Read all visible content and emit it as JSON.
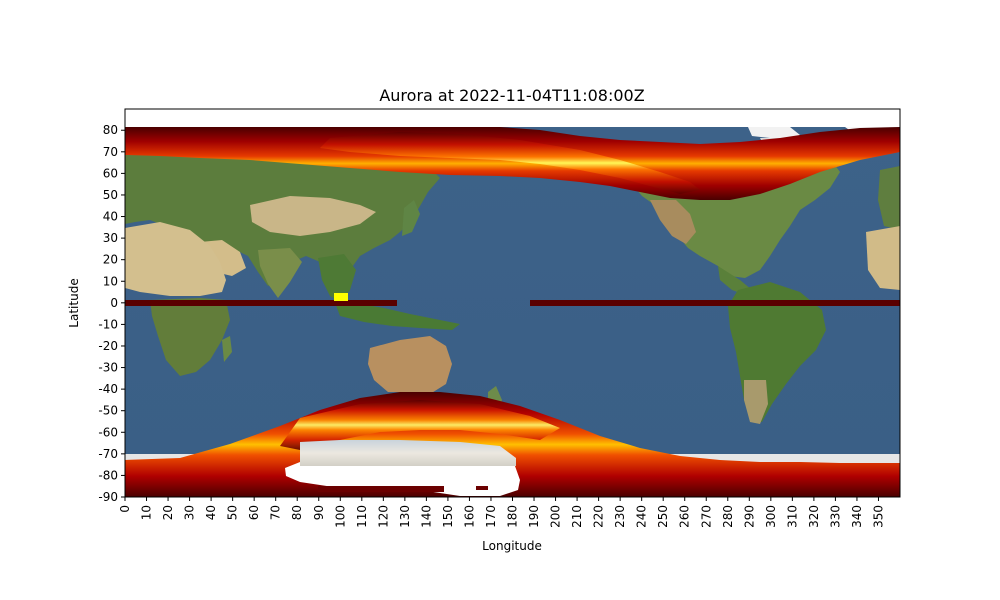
{
  "chart_data": {
    "type": "heatmap",
    "title": "Aurora at 2022-11-04T11:08:00Z",
    "xlabel": "Longitude",
    "ylabel": "Latitude",
    "xlim": [
      0,
      359
    ],
    "ylim": [
      -90,
      90
    ],
    "x_ticks": [
      0,
      10,
      20,
      30,
      40,
      50,
      60,
      70,
      80,
      90,
      100,
      110,
      120,
      130,
      140,
      150,
      160,
      170,
      180,
      190,
      200,
      210,
      220,
      230,
      240,
      250,
      260,
      270,
      280,
      290,
      300,
      310,
      320,
      330,
      340,
      350
    ],
    "y_ticks": [
      80,
      70,
      60,
      50,
      40,
      30,
      20,
      10,
      0,
      -10,
      -20,
      -30,
      -40,
      -50,
      -60,
      -70,
      -80,
      -90
    ],
    "x_tick_rotation": 90,
    "grid": false,
    "background": "Earth satellite imagery (Blue Marble) with country borders",
    "colormap": "hot",
    "series": [
      {
        "band": "northern auroral oval",
        "center_lat": [
          [
            0,
            73
          ],
          [
            60,
            74
          ],
          [
            120,
            73
          ],
          [
            150,
            70
          ],
          [
            180,
            67
          ],
          [
            210,
            62
          ],
          [
            240,
            56
          ],
          [
            270,
            57
          ],
          [
            300,
            64
          ],
          [
            330,
            71
          ],
          [
            359,
            73
          ]
        ],
        "peak_lon": 150
      },
      {
        "band": "southern auroral oval",
        "center_lat": [
          [
            0,
            -84
          ],
          [
            60,
            -70
          ],
          [
            90,
            -60
          ],
          [
            120,
            -56
          ],
          [
            150,
            -56
          ],
          [
            180,
            -60
          ],
          [
            210,
            -67
          ],
          [
            240,
            -74
          ],
          [
            270,
            -79
          ],
          [
            300,
            -82
          ],
          [
            330,
            -84
          ],
          [
            359,
            -84
          ]
        ],
        "peak_lon": 145
      },
      {
        "band": "equatorial artifact",
        "lat": 0,
        "lon_ranges": [
          [
            0,
            125
          ],
          [
            188,
            359
          ]
        ]
      }
    ]
  },
  "colors": {
    "ocean": "#3b6088",
    "land": "#5a7a3a",
    "desert": "#c8b384",
    "ice": "#f2f2f2",
    "aurora_low": "#5a0000",
    "aurora_mid": "#cc1a00",
    "aurora_high": "#ffa000",
    "aurora_peak": "#ffff80"
  }
}
